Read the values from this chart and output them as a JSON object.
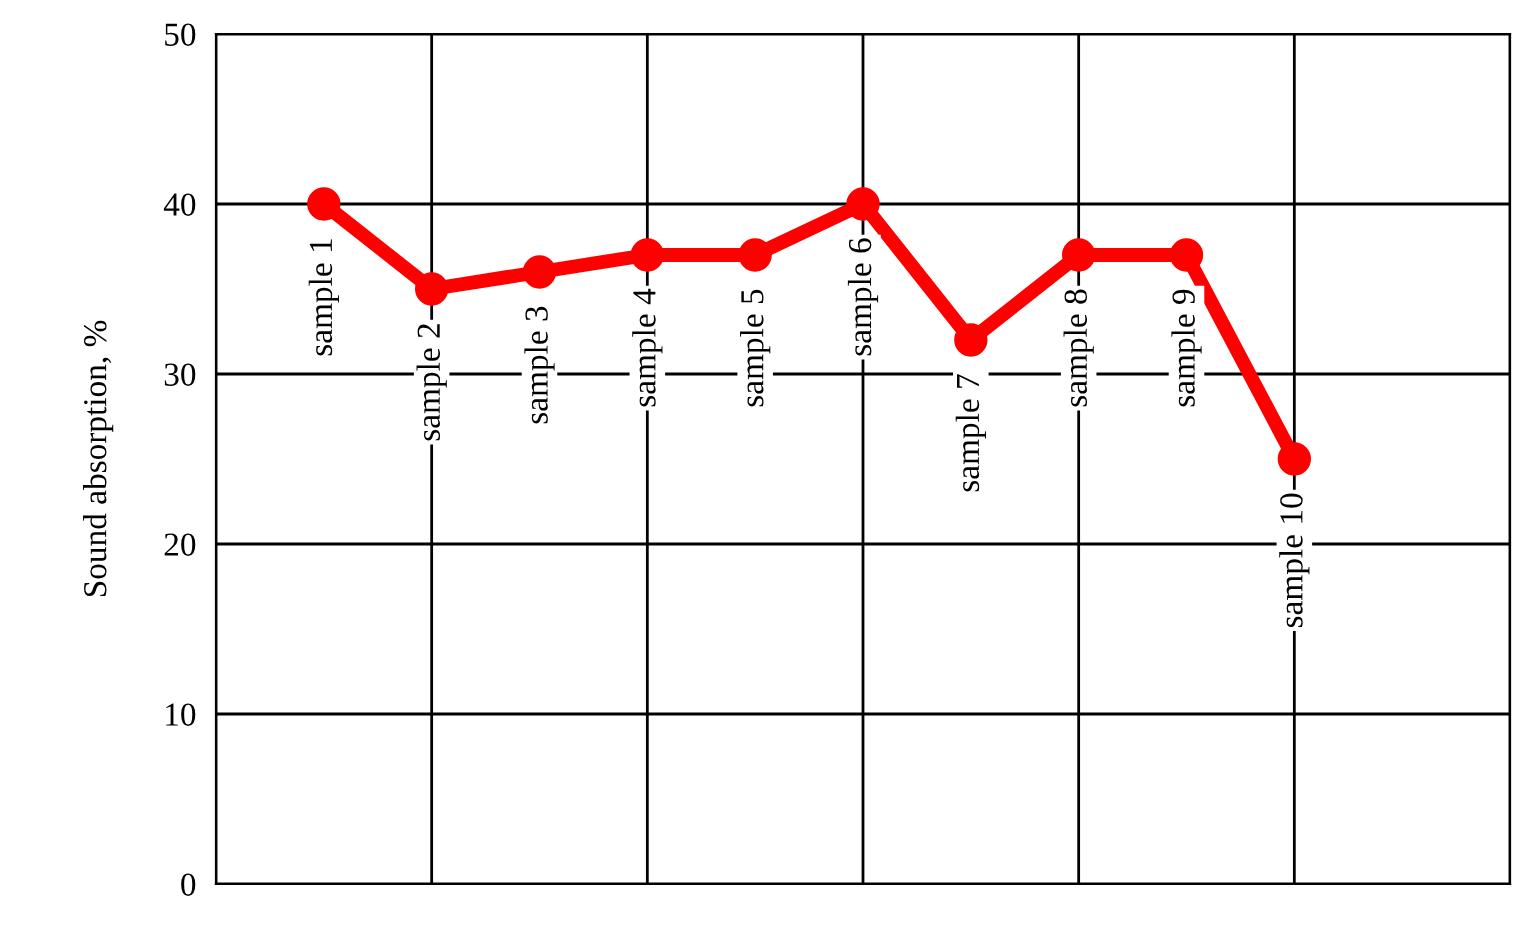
{
  "chart_data": {
    "type": "line",
    "ylabel": "Sound absorption, %",
    "categories": [
      "sample 1",
      "sample 2",
      "sample 3",
      "sample 4",
      "sample 5",
      "sample 6",
      "sample 7",
      "sample 8",
      "sample 9",
      "sample 10"
    ],
    "series": [
      {
        "color": "#ff0000",
        "values": [
          40,
          35,
          36,
          37,
          37,
          40,
          32,
          37,
          37,
          25
        ]
      }
    ],
    "ylim": [
      0,
      50
    ],
    "yticks": [
      0,
      10,
      20,
      30,
      40,
      50
    ],
    "grid": true,
    "marker": "circle",
    "line_style": "solid",
    "tick_labels": "y"
  }
}
